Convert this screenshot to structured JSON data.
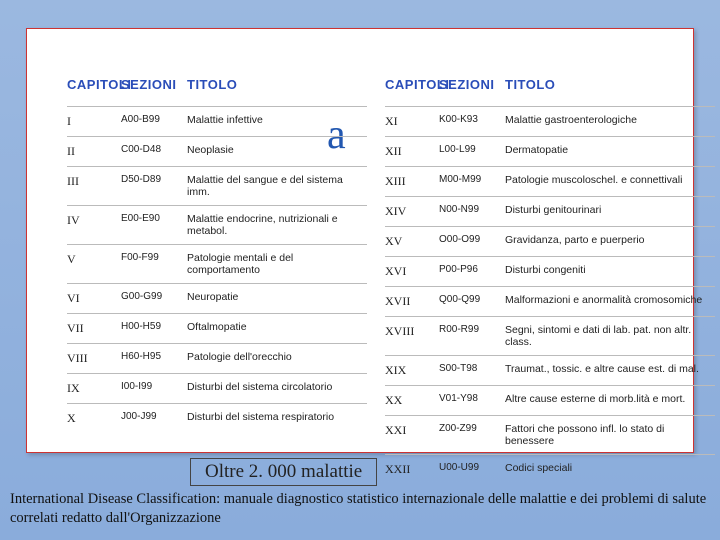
{
  "partial_bg_letter": "a",
  "headers": {
    "capitoli": "CAPITOLI",
    "sezioni": "SEZIONI",
    "titolo": "TITOLO"
  },
  "left_table": [
    {
      "cap": "I",
      "sez": "A00-B99",
      "tit": "Malattie infettive"
    },
    {
      "cap": "II",
      "sez": "C00-D48",
      "tit": "Neoplasie"
    },
    {
      "cap": "III",
      "sez": "D50-D89",
      "tit": "Malattie del sangue e del sistema imm."
    },
    {
      "cap": "IV",
      "sez": "E00-E90",
      "tit": "Malattie endocrine, nutrizionali e metabol."
    },
    {
      "cap": "V",
      "sez": "F00-F99",
      "tit": "Patologie mentali e del comportamento"
    },
    {
      "cap": "VI",
      "sez": "G00-G99",
      "tit": "Neuropatie"
    },
    {
      "cap": "VII",
      "sez": "H00-H59",
      "tit": "Oftalmopatie"
    },
    {
      "cap": "VIII",
      "sez": "H60-H95",
      "tit": "Patologie dell'orecchio"
    },
    {
      "cap": "IX",
      "sez": "I00-I99",
      "tit": "Disturbi del sistema circolatorio"
    },
    {
      "cap": "X",
      "sez": "J00-J99",
      "tit": "Disturbi del sistema respiratorio"
    }
  ],
  "right_table": [
    {
      "cap": "XI",
      "sez": "K00-K93",
      "tit": "Malattie gastroenterologiche"
    },
    {
      "cap": "XII",
      "sez": "L00-L99",
      "tit": "Dermatopatie"
    },
    {
      "cap": "XIII",
      "sez": "M00-M99",
      "tit": "Patologie muscoloschel. e connettivali"
    },
    {
      "cap": "XIV",
      "sez": "N00-N99",
      "tit": "Disturbi genitourinari"
    },
    {
      "cap": "XV",
      "sez": "O00-O99",
      "tit": "Gravidanza, parto e puerperio"
    },
    {
      "cap": "XVI",
      "sez": "P00-P96",
      "tit": "Disturbi congeniti"
    },
    {
      "cap": "XVII",
      "sez": "Q00-Q99",
      "tit": "Malformazioni e anormalità cromosomiche"
    },
    {
      "cap": "XVIII",
      "sez": "R00-R99",
      "tit": "Segni, sintomi e dati di lab. pat. non altr. class."
    },
    {
      "cap": "XIX",
      "sez": "S00-T98",
      "tit": "Traumat., tossic. e altre cause est. di mal."
    },
    {
      "cap": "XX",
      "sez": "V01-Y98",
      "tit": "Altre cause esterne di morb.lità e mort."
    },
    {
      "cap": "XXI",
      "sez": "Z00-Z99",
      "tit": "Fattori che possono infl. lo stato di benessere"
    },
    {
      "cap": "XXII",
      "sez": "U00-U99",
      "tit": "Codici speciali"
    }
  ],
  "caption": "Oltre 2. 000 malattie",
  "footer": "International Disease Classification: manuale diagnostico statistico internazionale delle malattie e dei problemi di salute correlati redatto dall'Organizzazione",
  "colors": {
    "bg_start": "#9bb8e0",
    "bg_end": "#8aacdb",
    "box_border": "#cc3333",
    "header_color": "#2a4db8",
    "row_border": "#bbbbbb"
  }
}
